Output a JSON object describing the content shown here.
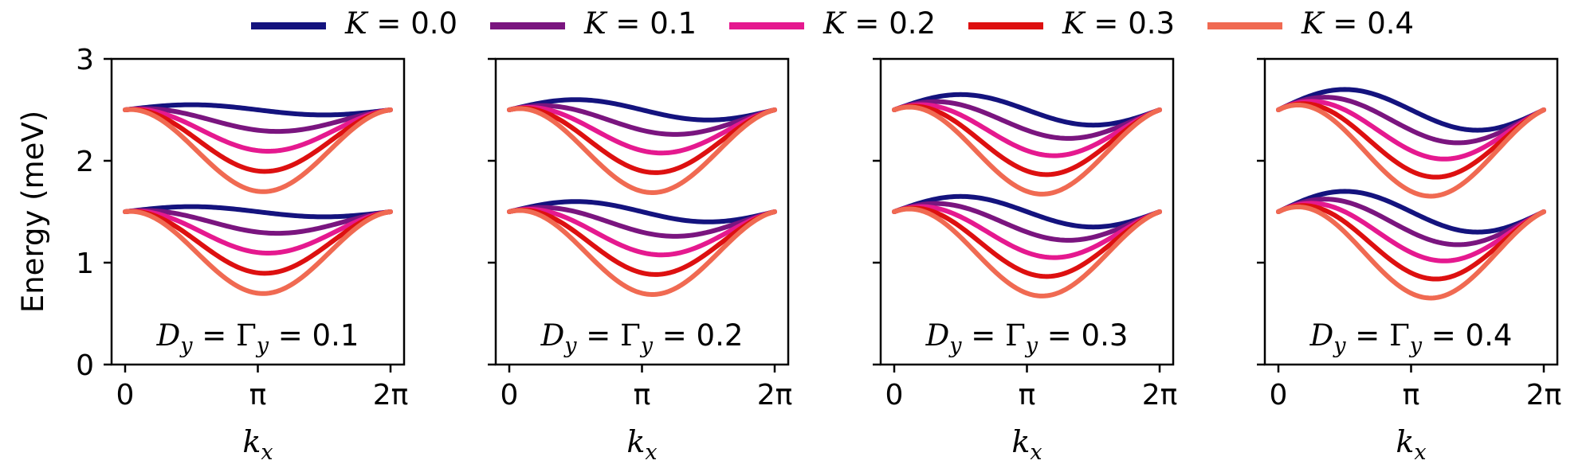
{
  "chart_data": {
    "type": "line",
    "legend": {
      "placement": "top",
      "entries": [
        {
          "symbol": "K",
          "value": "0.0",
          "color": "#14137e"
        },
        {
          "symbol": "K",
          "value": "0.1",
          "color": "#7a157f"
        },
        {
          "symbol": "K",
          "value": "0.2",
          "color": "#e5198f"
        },
        {
          "symbol": "K",
          "value": "0.3",
          "color": "#dd1010"
        },
        {
          "symbol": "K",
          "value": "0.4",
          "color": "#f06a52"
        }
      ]
    },
    "ylabel": "Energy (meV)",
    "xlabel": "k_x",
    "ylim": [
      0,
      3
    ],
    "xlim": [
      0,
      6.2832
    ],
    "yticks": [
      0,
      1,
      2,
      3
    ],
    "xticks": [
      {
        "value": 0,
        "label": "0"
      },
      {
        "value": 3.1416,
        "label": "π"
      },
      {
        "value": 6.2832,
        "label": "2π"
      }
    ],
    "grid": false,
    "panels": [
      {
        "annotation": "D_y = Γ_y = 0.1",
        "d": 0.1
      },
      {
        "annotation": "D_y = Γ_y = 0.2",
        "d": 0.2
      },
      {
        "annotation": "D_y = Γ_y = 0.3",
        "d": 0.3
      },
      {
        "annotation": "D_y = Γ_y = 0.4",
        "d": 0.4
      }
    ],
    "series_model": "E(k) = E0 + 0.5*d*sin(k) - K*(1 - cos(k)) for bands E0 = 1.5 and 2.5 meV"
  }
}
